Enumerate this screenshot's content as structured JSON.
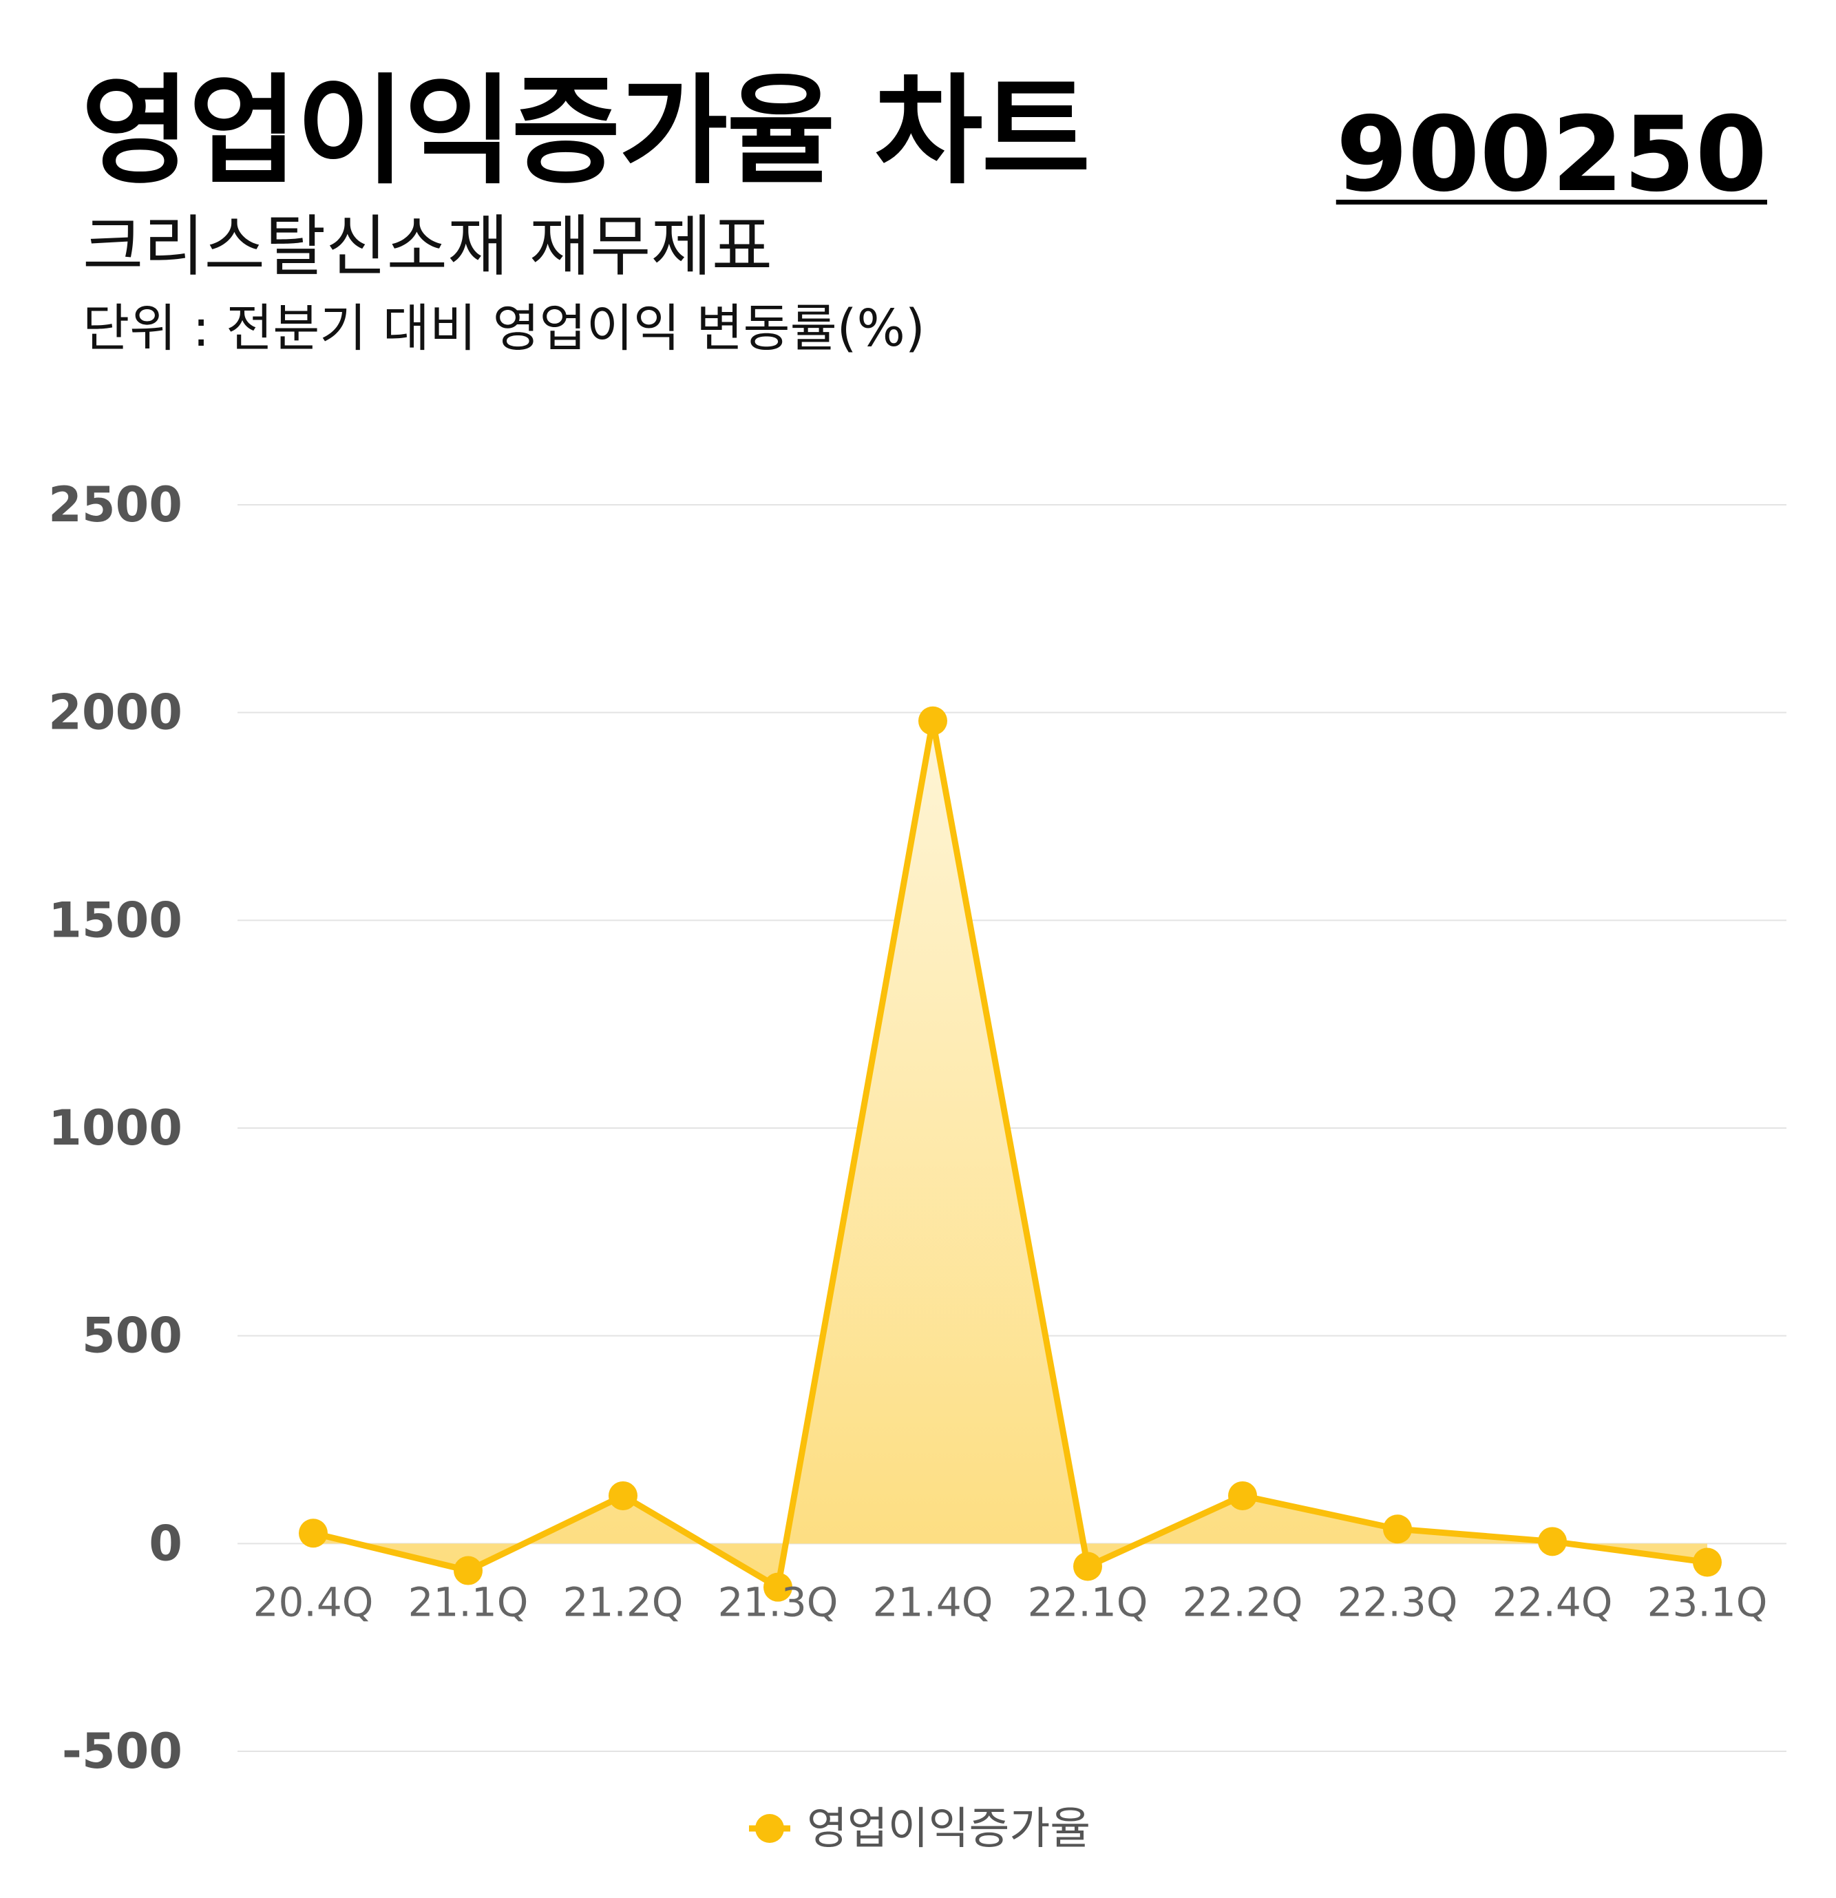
{
  "header": {
    "title": "영업이익증가율 차트",
    "ticker": "900250",
    "subtitle": "크리스탈신소재 재무제표",
    "unit": "단위 : 전분기 대비 영업이익 변동률(%)"
  },
  "colors": {
    "line": "#FBBF0A",
    "fill_top": "#FEF5D6",
    "fill_bottom": "#FDDD7E",
    "grid": "#E3E3E3"
  },
  "chart_data": {
    "type": "area",
    "categories": [
      "20.4Q",
      "21.1Q",
      "21.2Q",
      "21.3Q",
      "21.4Q",
      "22.1Q",
      "22.2Q",
      "22.3Q",
      "22.4Q",
      "23.1Q"
    ],
    "series": [
      {
        "name": "영업이익증가율",
        "values": [
          25,
          -65,
          115,
          -105,
          1980,
          -55,
          115,
          35,
          5,
          -45
        ]
      }
    ],
    "yticks": [
      2500,
      2000,
      1500,
      1000,
      500,
      0,
      -500
    ],
    "ylim": [
      -500,
      2500
    ],
    "grid": true,
    "legend": "bottom-center",
    "xlabel": "",
    "ylabel": ""
  }
}
